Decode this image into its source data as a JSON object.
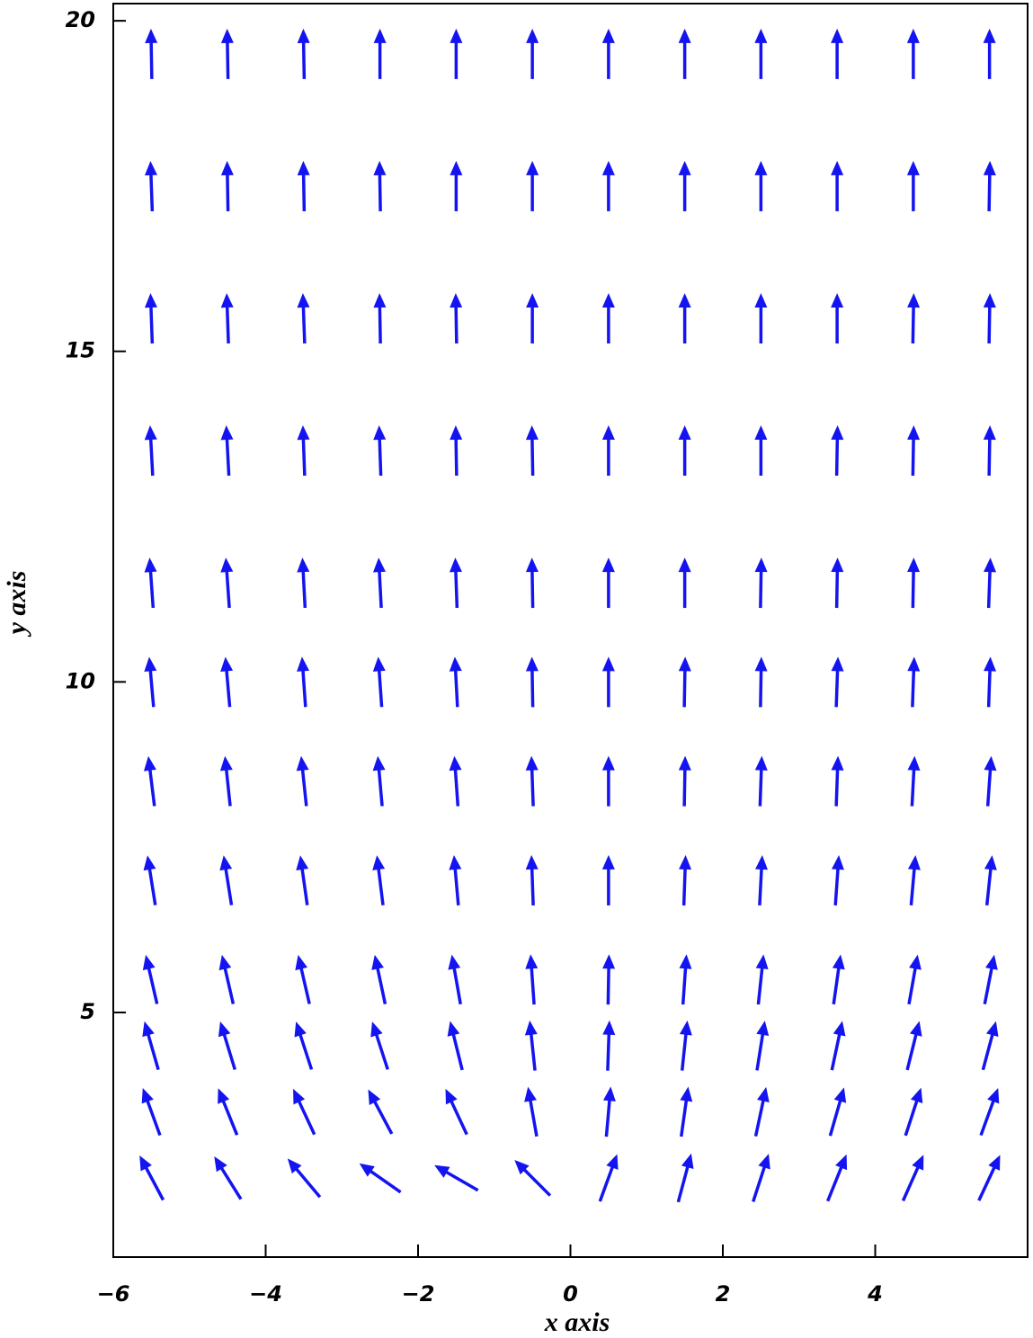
{
  "chart_data": {
    "type": "quiver",
    "xlabel": "x axis",
    "ylabel": "y axis",
    "color": "#1414f0",
    "xlim": [
      -6,
      6
    ],
    "ylim": [
      1.3,
      20.26
    ],
    "xticks": [
      {
        "value": -6,
        "label": "−6"
      },
      {
        "value": -4,
        "label": "−4"
      },
      {
        "value": -2,
        "label": "−2"
      },
      0,
      2,
      4
    ],
    "yticks": [
      5,
      10,
      15,
      20
    ],
    "x": [
      -5.5,
      -4.5,
      -3.5,
      -2.5,
      -1.5,
      -0.5,
      0.5,
      1.5,
      2.5,
      3.5,
      4.5,
      5.5
    ],
    "y": [
      2.5,
      3.5,
      4.5,
      5.5,
      7,
      8.5,
      10,
      11.5,
      13.5,
      15.5,
      17.5,
      19.5
    ],
    "angle": [
      [
        118,
        122,
        130,
        145,
        150,
        135,
        70,
        75,
        72,
        68,
        66,
        65
      ],
      [
        110,
        112,
        115,
        118,
        115,
        100,
        85,
        82,
        78,
        74,
        72,
        70
      ],
      [
        106,
        107,
        108,
        108,
        104,
        96,
        88,
        84,
        81,
        78,
        76,
        75
      ],
      [
        103,
        103,
        103,
        102,
        100,
        94,
        89,
        86,
        84,
        82,
        80,
        79
      ],
      [
        99,
        99,
        98,
        97,
        95,
        92,
        90,
        88,
        87,
        86,
        85,
        84
      ],
      [
        97,
        96,
        96,
        95,
        94,
        92,
        90,
        89,
        88,
        88,
        87,
        86
      ],
      [
        95,
        95,
        94,
        94,
        93,
        91,
        90,
        89,
        89,
        88,
        88,
        88
      ],
      [
        94,
        94,
        93,
        93,
        92,
        91,
        90,
        90,
        89,
        89,
        89,
        88
      ],
      [
        93,
        93,
        92,
        92,
        91,
        91,
        90,
        90,
        90,
        89,
        89,
        89
      ],
      [
        92,
        92,
        92,
        91,
        91,
        90,
        90,
        90,
        90,
        90,
        89,
        89
      ],
      [
        92,
        91,
        91,
        91,
        90,
        90,
        90,
        90,
        90,
        90,
        90,
        89
      ],
      [
        91,
        91,
        91,
        90,
        90,
        90,
        90,
        90,
        90,
        90,
        90,
        90
      ]
    ]
  }
}
